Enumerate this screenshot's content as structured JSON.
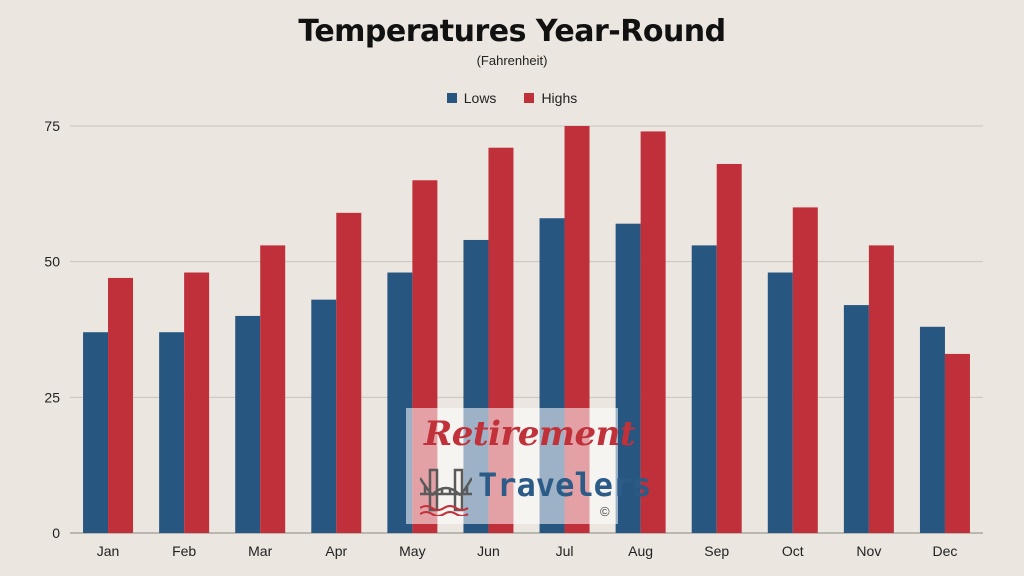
{
  "chart_data": {
    "type": "bar",
    "title": "Temperatures Year-Round",
    "subtitle": "(Fahrenheit)",
    "categories": [
      "Jan",
      "Feb",
      "Mar",
      "Apr",
      "May",
      "Jun",
      "Jul",
      "Aug",
      "Sep",
      "Oct",
      "Nov",
      "Dec"
    ],
    "series": [
      {
        "name": "Lows",
        "color": "#275680",
        "values": [
          37,
          37,
          40,
          43,
          48,
          54,
          58,
          57,
          53,
          48,
          42,
          38
        ]
      },
      {
        "name": "Highs",
        "color": "#c0303a",
        "values": [
          47,
          48,
          53,
          59,
          65,
          71,
          75,
          74,
          68,
          60,
          53,
          33
        ]
      }
    ],
    "yticks": [
      0,
      25,
      50,
      75
    ],
    "ylim": [
      0,
      75
    ],
    "grid": true,
    "legend": "top-center"
  },
  "watermark": {
    "line1": "Retirement",
    "line2": "Travelers",
    "copyright": "©",
    "icon": "bridge-icon"
  }
}
